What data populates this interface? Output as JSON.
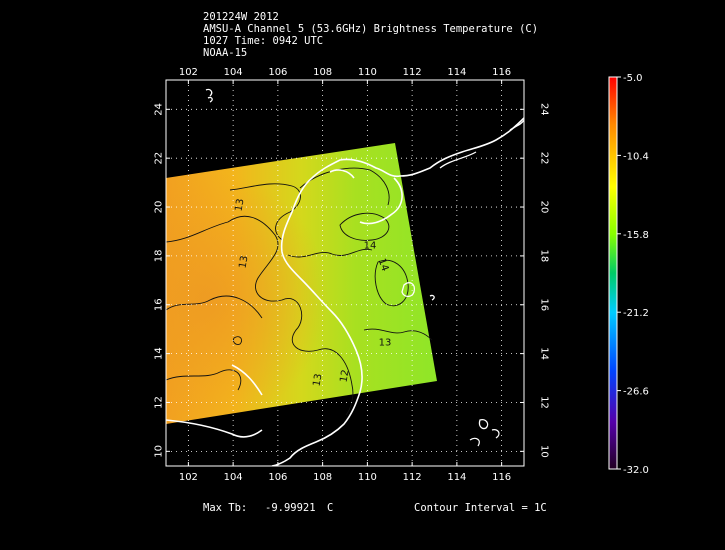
{
  "header": {
    "line1": "201224W 2012",
    "line2": "AMSU-A Channel 5 (53.6GHz) Brightness Temperature (C)",
    "line3": "1027 Time: 0942 UTC",
    "line4": "NOAA-15"
  },
  "map": {
    "lon_range": [
      101,
      117
    ],
    "lat_range": [
      9.4,
      25.2
    ],
    "lon_ticks": [
      "102",
      "104",
      "106",
      "108",
      "110",
      "112",
      "114",
      "116"
    ],
    "lat_ticks": [
      "10",
      "12",
      "14",
      "16",
      "18",
      "20",
      "22",
      "24"
    ],
    "grid": "dotted",
    "contour_labels": [
      "13",
      "13",
      "14",
      "14",
      "13",
      "12",
      "13"
    ]
  },
  "colorbar": {
    "labels": [
      "-5.0",
      "-10.4",
      "-15.8",
      "-21.2",
      "-26.6",
      "-32.0"
    ],
    "colors": [
      "#ff0000",
      "#ff8800",
      "#ffff00",
      "#88ff00",
      "#00cc66",
      "#00ccff",
      "#0044ff",
      "#5500aa",
      "#220022"
    ]
  },
  "footer": {
    "max_label": "Max Tb:",
    "max_value": "-9.99921",
    "max_unit": "C",
    "contour": "Contour Interval = 1C"
  }
}
